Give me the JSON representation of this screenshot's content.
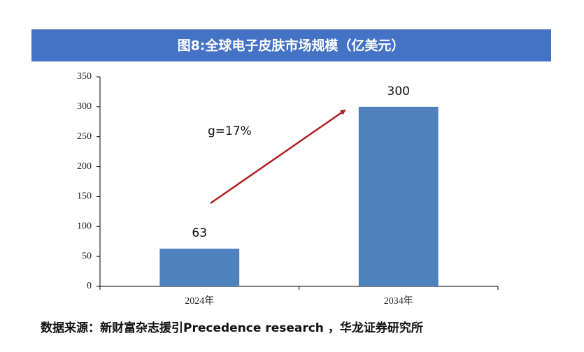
{
  "chart_data": {
    "type": "bar",
    "title": "图8:全球电子皮肤市场规模（亿美元）",
    "categories": [
      "2024年",
      "2034年"
    ],
    "values": [
      63,
      300
    ],
    "color": "#4f81bd",
    "ylim": [
      0,
      350
    ],
    "yticks": [
      0,
      50,
      100,
      150,
      200,
      250,
      300,
      350
    ],
    "annotation": "g=17%",
    "source": "数据来源：新财富杂志援引Precedence research ，华龙证券研究所"
  }
}
